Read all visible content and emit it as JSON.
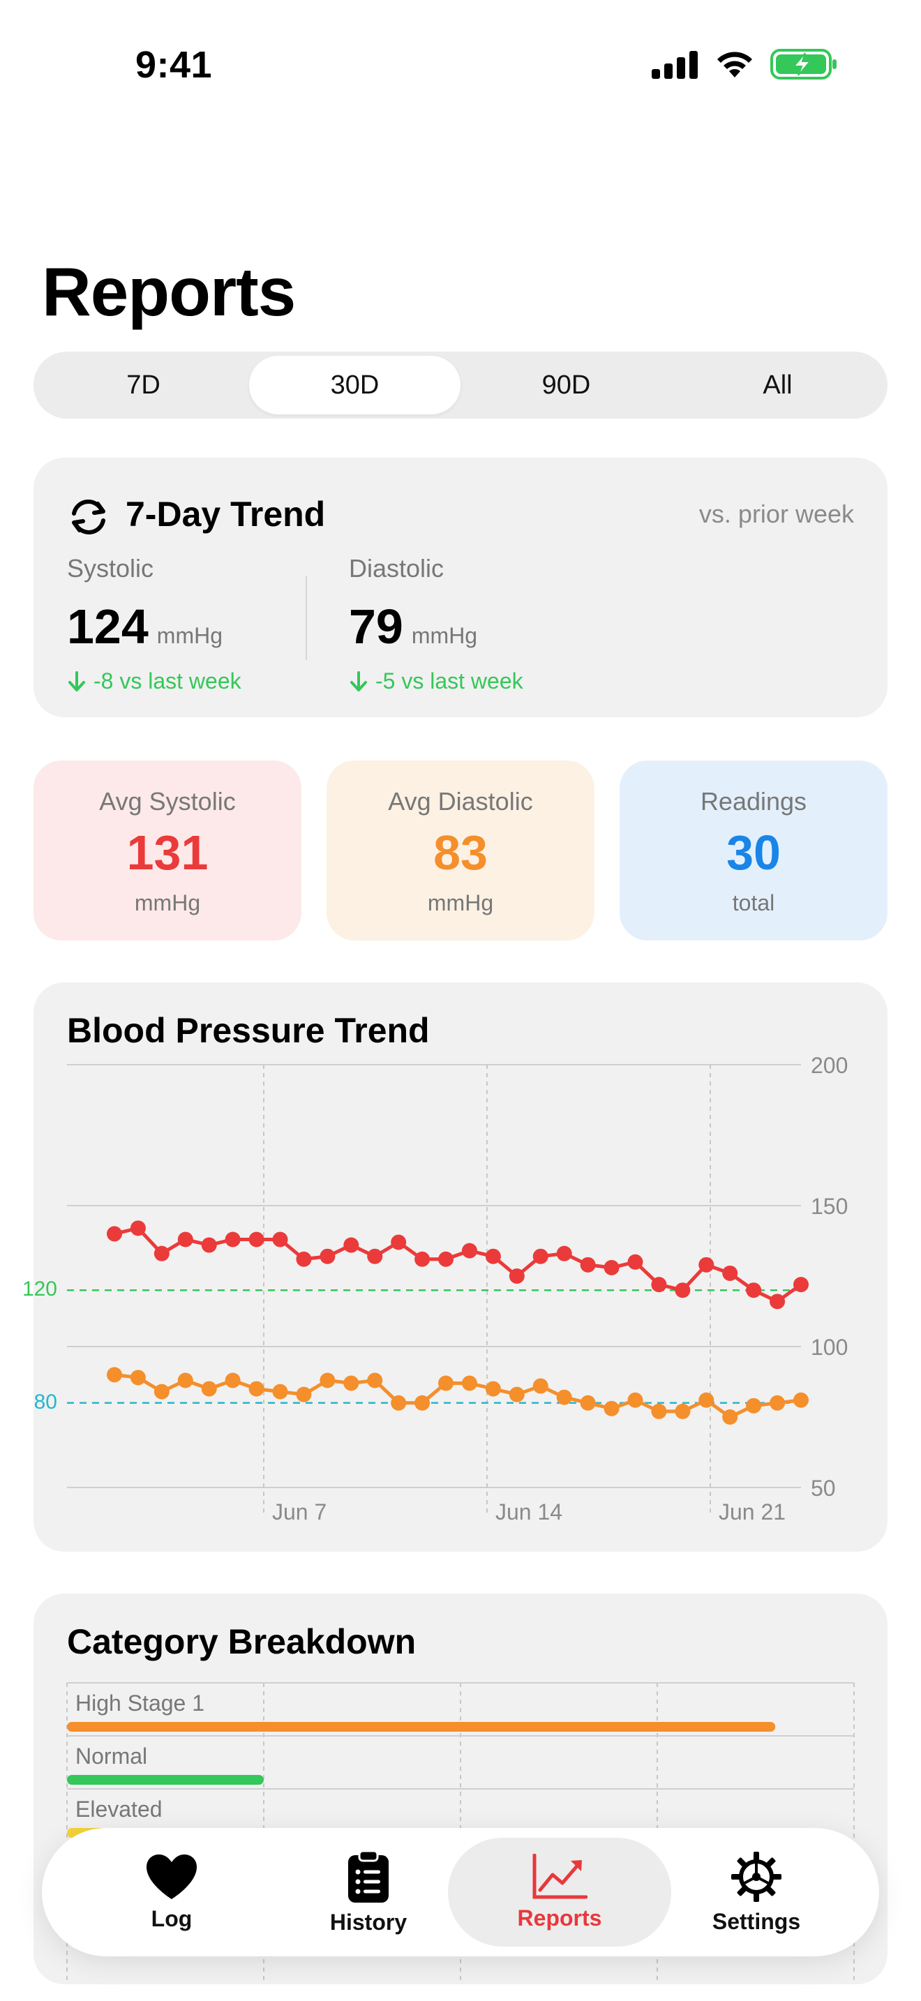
{
  "status_bar": {
    "time": "9:41"
  },
  "title": "Reports",
  "range_tabs": [
    {
      "label": "7D",
      "active": false
    },
    {
      "label": "30D",
      "active": true
    },
    {
      "label": "90D",
      "active": false
    },
    {
      "label": "All",
      "active": false
    }
  ],
  "trend_card": {
    "title": "7-Day Trend",
    "subtitle": "vs. prior week",
    "icon": "arrows-cycle-icon",
    "systolic": {
      "label": "Systolic",
      "value": "124",
      "unit": "mmHg",
      "change": "-8 vs last week"
    },
    "diastolic": {
      "label": "Diastolic",
      "value": "79",
      "unit": "mmHg",
      "change": "-5 vs last week"
    }
  },
  "stats": [
    {
      "label": "Avg Systolic",
      "value": "131",
      "unit": "mmHg",
      "color": "#eb3a3a"
    },
    {
      "label": "Avg Diastolic",
      "value": "83",
      "unit": "mmHg",
      "color": "#f48f2c"
    },
    {
      "label": "Readings",
      "value": "30",
      "unit": "total",
      "color": "#1a85e8"
    }
  ],
  "chart_data": [
    {
      "type": "line",
      "title": "Blood Pressure Trend",
      "x_ticks": [
        "Jun 7",
        "Jun 14",
        "Jun 21"
      ],
      "y_ticks": [
        50,
        100,
        150,
        200
      ],
      "ylim": [
        50,
        200
      ],
      "grid": true,
      "reference_lines": [
        {
          "value": 120,
          "label": "120",
          "color": "#34c759"
        },
        {
          "value": 80,
          "label": "80",
          "color": "#22b8cf"
        }
      ],
      "series": [
        {
          "color": "#eb3a3a",
          "values": [
            140,
            142,
            133,
            138,
            136,
            138,
            138,
            138,
            131,
            132,
            136,
            132,
            137,
            131,
            131,
            134,
            132,
            125,
            132,
            133,
            129,
            128,
            130,
            122,
            120,
            129,
            126,
            120,
            116,
            122
          ]
        },
        {
          "color": "#f48f2c",
          "values": [
            90,
            89,
            84,
            88,
            85,
            88,
            85,
            84,
            83,
            88,
            87,
            88,
            80,
            80,
            87,
            87,
            85,
            83,
            86,
            82,
            80,
            78,
            81,
            77,
            77,
            81,
            75,
            79,
            80,
            81
          ]
        }
      ]
    },
    {
      "type": "bar",
      "title": "Category Breakdown",
      "categories": [
        "High Stage 1",
        "Normal",
        "Elevated"
      ],
      "values": [
        18,
        5,
        1
      ],
      "colors": [
        "#f48f2c",
        "#34c759",
        "#f5d33a"
      ],
      "xlim": [
        0,
        20
      ]
    }
  ],
  "tabbar": [
    {
      "label": "Log",
      "icon": "heart-icon",
      "active": false
    },
    {
      "label": "History",
      "icon": "clipboard-list-icon",
      "active": false
    },
    {
      "label": "Reports",
      "icon": "chart-line-up-icon",
      "active": true
    },
    {
      "label": "Settings",
      "icon": "gear-icon",
      "active": false
    }
  ]
}
